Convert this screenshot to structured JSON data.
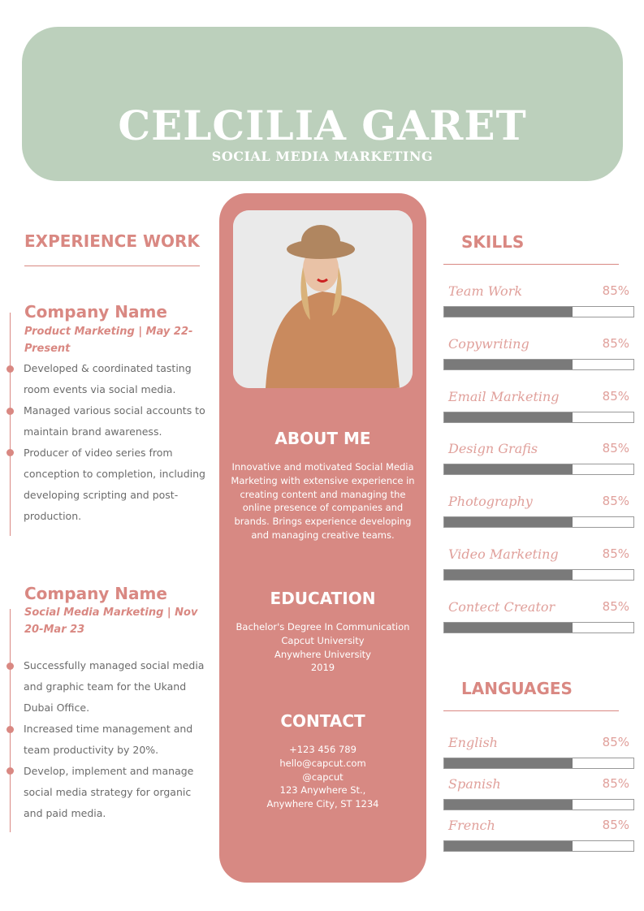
{
  "header": {
    "name": "CELCILIA GARET",
    "title": "SOCIAL MEDIA MARKETING"
  },
  "experience": {
    "heading": "EXPERIENCE WORK",
    "jobs": [
      {
        "company": "Company Name",
        "role": "Product Marketing | May 22-Present",
        "bullets": [
          "Developed & coordinated tasting room events via social media.",
          "Managed various social accounts to maintain brand awareness.",
          "Producer of video series from conception to completion, including developing scripting and post-production."
        ]
      },
      {
        "company": "Company Name",
        "role": "Social Media Marketing | Nov 20-Mar 23",
        "bullets": [
          "Successfully managed social media and graphic team for the Ukand Dubai Office.",
          "Increased time management and team productivity by 20%.",
          "Develop, implement and manage social media strategy for organic and paid media."
        ]
      }
    ]
  },
  "about": {
    "heading": "ABOUT ME",
    "text": "Innovative and motivated Social Media Marketing with extensive experience in creating content and managing the online presence of companies and brands. Brings experience developing and managing creative teams."
  },
  "education": {
    "heading": "EDUCATION",
    "lines": [
      "Bachelor's Degree In Communication",
      "Capcut University",
      "Anywhere University",
      "2019"
    ]
  },
  "contact": {
    "heading": "CONTACT",
    "lines": [
      "+123  456 789",
      "hello@capcut.com",
      "@capcut",
      "123 Anywhere St.,",
      "Anywhere City, ST 1234"
    ]
  },
  "skills": {
    "heading": "SKILLS",
    "items": [
      {
        "label": "Team Work",
        "pct": "85%",
        "fill": 0.68
      },
      {
        "label": "Copywriting",
        "pct": "85%",
        "fill": 0.68
      },
      {
        "label": "Email Marketing",
        "pct": "85%",
        "fill": 0.68
      },
      {
        "label": "Design Grafis",
        "pct": "85%",
        "fill": 0.68
      },
      {
        "label": "Photography",
        "pct": "85%",
        "fill": 0.68
      },
      {
        "label": "Video Marketing",
        "pct": "85%",
        "fill": 0.68
      },
      {
        "label": "Contect Creator",
        "pct": "85%",
        "fill": 0.68
      }
    ]
  },
  "languages": {
    "heading": "LANGUAGES",
    "items": [
      {
        "label": "English",
        "pct": "85%",
        "fill": 0.68
      },
      {
        "label": "Spanish",
        "pct": "85%",
        "fill": 0.68
      },
      {
        "label": "French",
        "pct": "85%",
        "fill": 0.68
      }
    ]
  },
  "colors": {
    "header": "#bcd0bc",
    "accent": "#d98882",
    "bar": "#7a7a7a"
  }
}
